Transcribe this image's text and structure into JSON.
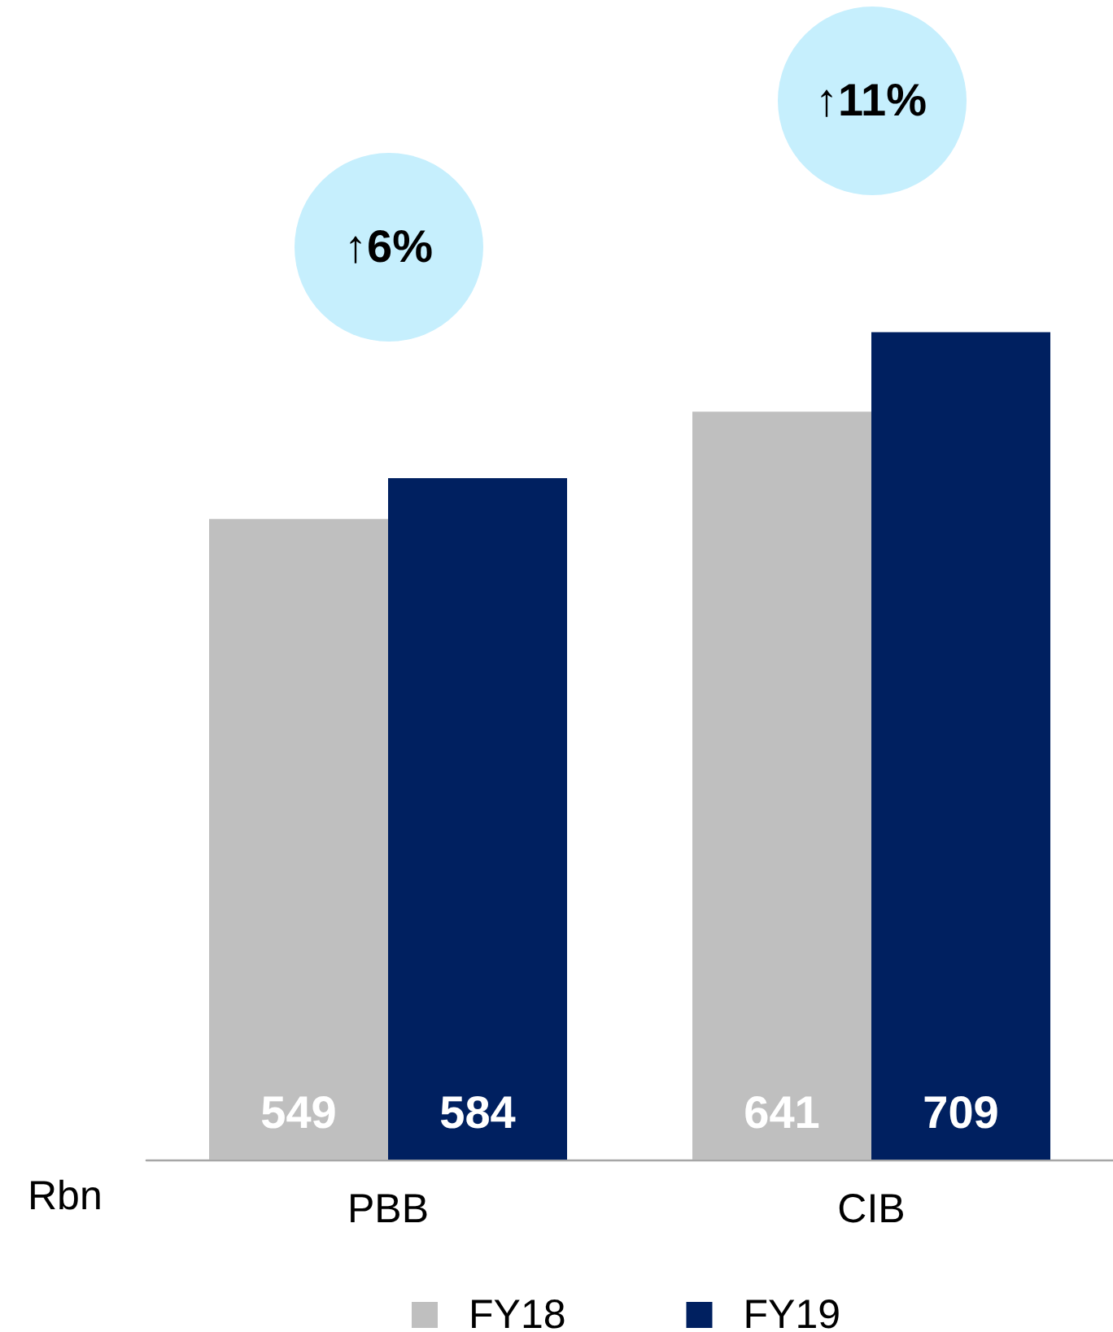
{
  "chart_data": {
    "type": "bar",
    "categories": [
      "PBB",
      "CIB"
    ],
    "series": [
      {
        "name": "FY18",
        "color": "#bfbfbf",
        "values": [
          549,
          641
        ]
      },
      {
        "name": "FY19",
        "color": "#002060",
        "values": [
          584,
          709
        ]
      }
    ],
    "ylabel": "Rbn",
    "data_labels": true,
    "legend": "bottom",
    "tick_labels": "x",
    "annotations": [
      "↑6%",
      "↑11%"
    ]
  }
}
